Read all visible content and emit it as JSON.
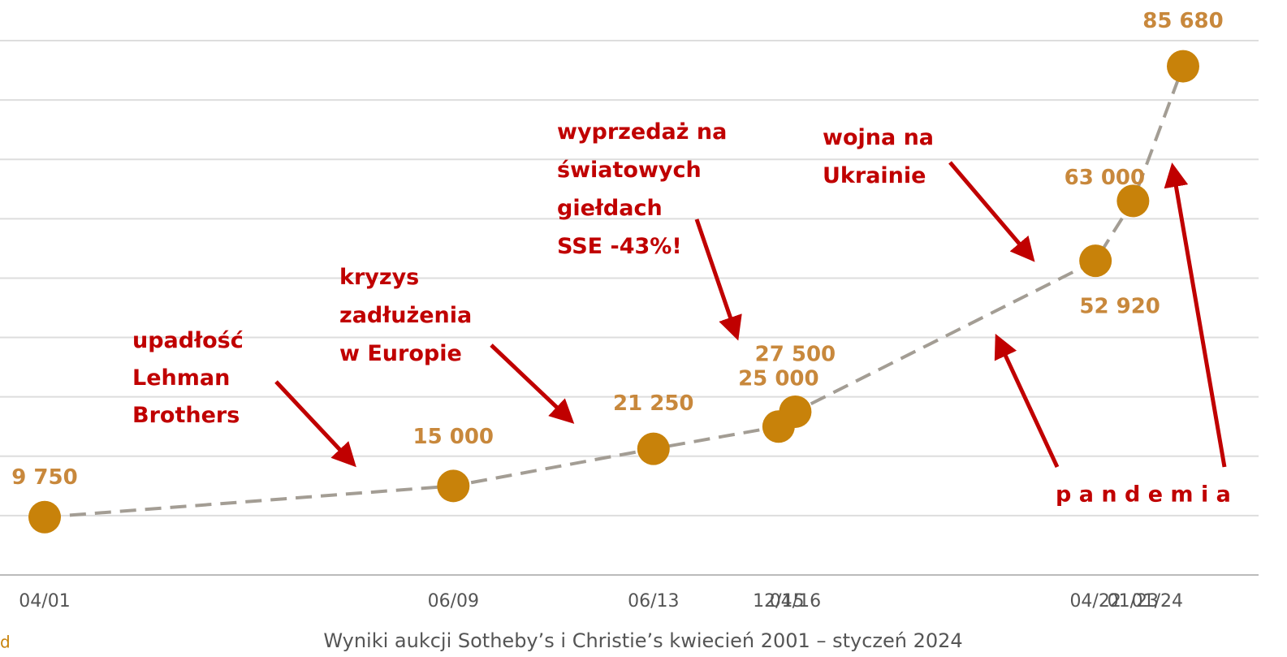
{
  "chart_data": {
    "type": "line",
    "categories": [
      "04/01",
      "06/09",
      "06/13",
      "12/15",
      "04/16",
      "04/22",
      "01/23",
      "01/24"
    ],
    "values": [
      9750,
      15000,
      21250,
      25000,
      27500,
      52920,
      63000,
      85680
    ],
    "value_labels": [
      "9 750",
      "15 000",
      "21 250",
      "25 000",
      "27 500",
      "52 920",
      "63 000",
      "85 680"
    ],
    "color": "#c8820a",
    "line_color": "#a39d94",
    "ylim": [
      0,
      90000
    ],
    "yticks": [
      0,
      10000,
      20000,
      30000,
      40000,
      50000,
      60000,
      70000,
      80000,
      90000
    ],
    "grid": true,
    "annotations": [
      [
        "upadłość",
        "Lehman",
        "Brothers"
      ],
      [
        "kryzys",
        "zadłużenia",
        "w Europie"
      ],
      [
        "wyprzedaż na",
        "światowych",
        "giełdach",
        "SSE -43%!"
      ],
      [
        "wojna na",
        "Ukrainie"
      ],
      [
        "p a n d e m i a"
      ]
    ],
    "caption": "Wyniki aukcji Sotheby’s i Christie’s kwiecień 2001 – styczeń 2024",
    "corner_text": "d"
  }
}
